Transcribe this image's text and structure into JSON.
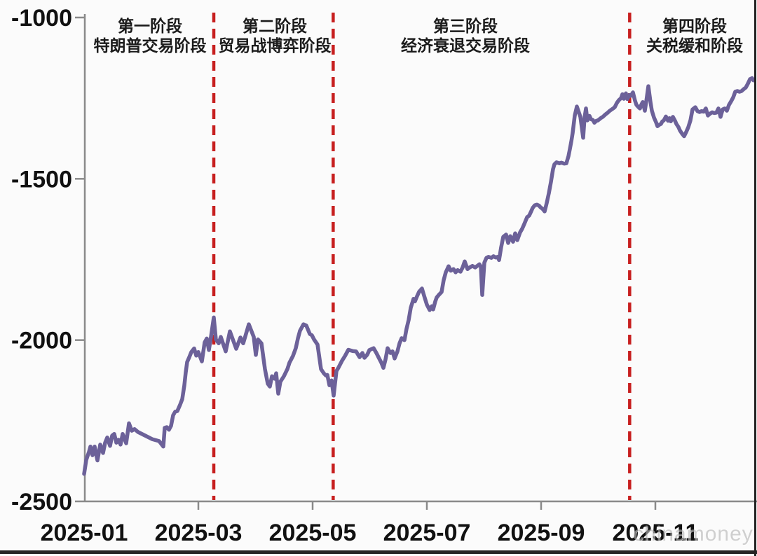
{
  "watermark": "chinamoney",
  "chart_data": {
    "type": "line",
    "ylim": [
      -2500,
      -1000
    ],
    "xlim_months": [
      0,
      11.78
    ],
    "grid": false,
    "legend": "none",
    "y_ticks": [
      {
        "v": -1000,
        "label": "-1000"
      },
      {
        "v": -1500,
        "label": "-1500"
      },
      {
        "v": -2000,
        "label": "-2000"
      },
      {
        "v": -2500,
        "label": "-2500"
      }
    ],
    "x_ticks": [
      {
        "m": 0,
        "label": "2025-01"
      },
      {
        "m": 2,
        "label": "2025-03"
      },
      {
        "m": 4,
        "label": "2025-05"
      },
      {
        "m": 6,
        "label": "2025-07"
      },
      {
        "m": 8,
        "label": "2025-09"
      },
      {
        "m": 10,
        "label": "2025-11"
      }
    ],
    "phases": [
      {
        "line1": "第一阶段",
        "line2": "特朗普交易阶段"
      },
      {
        "line1": "第二阶段",
        "line2": "贸易战博弈阶段"
      },
      {
        "line1": "第三阶段",
        "line2": "经济衰退交易阶段"
      },
      {
        "line1": "第四阶段",
        "line2": "关税缓和阶段"
      }
    ],
    "dividers_months": [
      2.27,
      4.36,
      9.55
    ],
    "colors": {
      "line": "#6c6199",
      "divider": "#c71f1f",
      "axis": "#8a8a8a",
      "text": "#111111"
    },
    "series": [
      {
        "points": [
          [
            0.0,
            -2415
          ],
          [
            0.037,
            -2372
          ],
          [
            0.086,
            -2346
          ],
          [
            0.11,
            -2330
          ],
          [
            0.147,
            -2357
          ],
          [
            0.184,
            -2330
          ],
          [
            0.233,
            -2373
          ],
          [
            0.282,
            -2324
          ],
          [
            0.331,
            -2350
          ],
          [
            0.368,
            -2318
          ],
          [
            0.405,
            -2302
          ],
          [
            0.454,
            -2328
          ],
          [
            0.491,
            -2296
          ],
          [
            0.528,
            -2291
          ],
          [
            0.564,
            -2318
          ],
          [
            0.601,
            -2309
          ],
          [
            0.638,
            -2324
          ],
          [
            0.675,
            -2291
          ],
          [
            0.736,
            -2320
          ],
          [
            0.785,
            -2258
          ],
          [
            0.834,
            -2281
          ],
          [
            0.883,
            -2276
          ],
          [
            0.945,
            -2285
          ],
          [
            1.067,
            -2296
          ],
          [
            1.19,
            -2307
          ],
          [
            1.313,
            -2313
          ],
          [
            1.387,
            -2330
          ],
          [
            1.411,
            -2272
          ],
          [
            1.448,
            -2270
          ],
          [
            1.485,
            -2278
          ],
          [
            1.521,
            -2266
          ],
          [
            1.558,
            -2233
          ],
          [
            1.595,
            -2222
          ],
          [
            1.632,
            -2220
          ],
          [
            1.681,
            -2200
          ],
          [
            1.718,
            -2183
          ],
          [
            1.755,
            -2140
          ],
          [
            1.779,
            -2100
          ],
          [
            1.804,
            -2068
          ],
          [
            1.84,
            -2053
          ],
          [
            1.877,
            -2037
          ],
          [
            1.926,
            -2026
          ],
          [
            1.963,
            -2048
          ],
          [
            2.0,
            -2037
          ],
          [
            2.061,
            -2066
          ],
          [
            2.11,
            -2007
          ],
          [
            2.147,
            -1995
          ],
          [
            2.184,
            -2031
          ],
          [
            2.221,
            -1990
          ],
          [
            2.27,
            -1930
          ],
          [
            2.307,
            -1998
          ],
          [
            2.356,
            -2010
          ],
          [
            2.393,
            -1990
          ],
          [
            2.479,
            -2035
          ],
          [
            2.552,
            -1973
          ],
          [
            2.663,
            -2027
          ],
          [
            2.736,
            -1992
          ],
          [
            2.785,
            -2010
          ],
          [
            2.883,
            -1951
          ],
          [
            2.969,
            -1990
          ],
          [
            3.006,
            -2046
          ],
          [
            3.043,
            -1998
          ],
          [
            3.104,
            -2010
          ],
          [
            3.166,
            -2090
          ],
          [
            3.215,
            -2135
          ],
          [
            3.252,
            -2144
          ],
          [
            3.288,
            -2112
          ],
          [
            3.337,
            -2120
          ],
          [
            3.362,
            -2103
          ],
          [
            3.399,
            -2166
          ],
          [
            3.436,
            -2129
          ],
          [
            3.497,
            -2112
          ],
          [
            3.558,
            -2090
          ],
          [
            3.595,
            -2070
          ],
          [
            3.656,
            -2049
          ],
          [
            3.706,
            -2025
          ],
          [
            3.742,
            -1995
          ],
          [
            3.779,
            -1971
          ],
          [
            3.84,
            -1951
          ],
          [
            3.89,
            -1955
          ],
          [
            3.951,
            -1981
          ],
          [
            3.988,
            -1985
          ],
          [
            4.025,
            -1998
          ],
          [
            4.086,
            -2014
          ],
          [
            4.147,
            -2090
          ],
          [
            4.196,
            -2103
          ],
          [
            4.233,
            -2110
          ],
          [
            4.258,
            -2108
          ],
          [
            4.294,
            -2140
          ],
          [
            4.331,
            -2125
          ],
          [
            4.368,
            -2172
          ],
          [
            4.417,
            -2096
          ],
          [
            4.454,
            -2085
          ],
          [
            4.515,
            -2064
          ],
          [
            4.564,
            -2050
          ],
          [
            4.626,
            -2030
          ],
          [
            4.699,
            -2034
          ],
          [
            4.761,
            -2035
          ],
          [
            4.822,
            -2053
          ],
          [
            4.871,
            -2040
          ],
          [
            4.908,
            -2055
          ],
          [
            4.957,
            -2045
          ],
          [
            4.994,
            -2031
          ],
          [
            5.067,
            -2025
          ],
          [
            5.117,
            -2040
          ],
          [
            5.153,
            -2053
          ],
          [
            5.202,
            -2070
          ],
          [
            5.239,
            -2086
          ],
          [
            5.276,
            -2060
          ],
          [
            5.313,
            -2025
          ],
          [
            5.362,
            -2040
          ],
          [
            5.399,
            -2035
          ],
          [
            5.436,
            -2057
          ],
          [
            5.485,
            -2035
          ],
          [
            5.521,
            -2010
          ],
          [
            5.558,
            -1994
          ],
          [
            5.607,
            -2000
          ],
          [
            5.644,
            -1965
          ],
          [
            5.681,
            -1938
          ],
          [
            5.718,
            -1900
          ],
          [
            5.767,
            -1872
          ],
          [
            5.791,
            -1880
          ],
          [
            5.828,
            -1864
          ],
          [
            5.865,
            -1850
          ],
          [
            5.914,
            -1840
          ],
          [
            5.951,
            -1862
          ],
          [
            6.0,
            -1890
          ],
          [
            6.049,
            -1907
          ],
          [
            6.086,
            -1895
          ],
          [
            6.11,
            -1905
          ],
          [
            6.147,
            -1880
          ],
          [
            6.172,
            -1868
          ],
          [
            6.209,
            -1860
          ],
          [
            6.258,
            -1851
          ],
          [
            6.294,
            -1814
          ],
          [
            6.331,
            -1790
          ],
          [
            6.38,
            -1771
          ],
          [
            6.417,
            -1785
          ],
          [
            6.466,
            -1780
          ],
          [
            6.503,
            -1790
          ],
          [
            6.54,
            -1783
          ],
          [
            6.589,
            -1788
          ],
          [
            6.626,
            -1775
          ],
          [
            6.663,
            -1756
          ],
          [
            6.712,
            -1780
          ],
          [
            6.748,
            -1775
          ],
          [
            6.797,
            -1770
          ],
          [
            6.847,
            -1775
          ],
          [
            6.883,
            -1770
          ],
          [
            6.92,
            -1765
          ],
          [
            6.945,
            -1772
          ],
          [
            6.969,
            -1860
          ],
          [
            7.006,
            -1760
          ],
          [
            7.043,
            -1745
          ],
          [
            7.08,
            -1742
          ],
          [
            7.129,
            -1745
          ],
          [
            7.166,
            -1740
          ],
          [
            7.202,
            -1744
          ],
          [
            7.239,
            -1742
          ],
          [
            7.264,
            -1752
          ],
          [
            7.301,
            -1712
          ],
          [
            7.337,
            -1680
          ],
          [
            7.387,
            -1673
          ],
          [
            7.423,
            -1699
          ],
          [
            7.46,
            -1678
          ],
          [
            7.509,
            -1695
          ],
          [
            7.546,
            -1669
          ],
          [
            7.583,
            -1690
          ],
          [
            7.632,
            -1666
          ],
          [
            7.669,
            -1655
          ],
          [
            7.706,
            -1640
          ],
          [
            7.755,
            -1619
          ],
          [
            7.791,
            -1614
          ],
          [
            7.828,
            -1600
          ],
          [
            7.853,
            -1590
          ],
          [
            7.89,
            -1582
          ],
          [
            7.926,
            -1580
          ],
          [
            7.963,
            -1583
          ],
          [
            7.988,
            -1588
          ],
          [
            8.025,
            -1593
          ],
          [
            8.061,
            -1601
          ],
          [
            8.098,
            -1575
          ],
          [
            8.135,
            -1545
          ],
          [
            8.172,
            -1510
          ],
          [
            8.209,
            -1470
          ],
          [
            8.233,
            -1455
          ],
          [
            8.27,
            -1449
          ],
          [
            8.319,
            -1452
          ],
          [
            8.356,
            -1450
          ],
          [
            8.405,
            -1453
          ],
          [
            8.442,
            -1452
          ],
          [
            8.479,
            -1430
          ],
          [
            8.503,
            -1408
          ],
          [
            8.528,
            -1385
          ],
          [
            8.552,
            -1358
          ],
          [
            8.589,
            -1304
          ],
          [
            8.626,
            -1276
          ],
          [
            8.663,
            -1295
          ],
          [
            8.687,
            -1308
          ],
          [
            8.712,
            -1340
          ],
          [
            8.736,
            -1373
          ],
          [
            8.761,
            -1310
          ],
          [
            8.785,
            -1282
          ],
          [
            8.81,
            -1319
          ],
          [
            8.847,
            -1305
          ],
          [
            8.871,
            -1315
          ],
          [
            8.908,
            -1318
          ],
          [
            8.933,
            -1326
          ],
          [
            8.969,
            -1320
          ],
          [
            8.994,
            -1319
          ],
          [
            9.043,
            -1312
          ],
          [
            9.08,
            -1308
          ],
          [
            9.129,
            -1300
          ],
          [
            9.166,
            -1295
          ],
          [
            9.202,
            -1289
          ],
          [
            9.252,
            -1283
          ],
          [
            9.288,
            -1278
          ],
          [
            9.325,
            -1265
          ],
          [
            9.362,
            -1256
          ],
          [
            9.399,
            -1250
          ],
          [
            9.423,
            -1238
          ],
          [
            9.448,
            -1252
          ],
          [
            9.485,
            -1235
          ],
          [
            9.509,
            -1253
          ],
          [
            9.546,
            -1240
          ],
          [
            9.571,
            -1243
          ],
          [
            9.607,
            -1232
          ],
          [
            9.644,
            -1258
          ],
          [
            9.669,
            -1271
          ],
          [
            9.706,
            -1278
          ],
          [
            9.73,
            -1282
          ],
          [
            9.755,
            -1270
          ],
          [
            9.779,
            -1262
          ],
          [
            9.816,
            -1289
          ],
          [
            9.84,
            -1260
          ],
          [
            9.877,
            -1213
          ],
          [
            9.914,
            -1262
          ],
          [
            9.939,
            -1289
          ],
          [
            9.975,
            -1310
          ],
          [
            10.012,
            -1325
          ],
          [
            10.037,
            -1337
          ],
          [
            10.074,
            -1332
          ],
          [
            10.098,
            -1330
          ],
          [
            10.123,
            -1322
          ],
          [
            10.147,
            -1319
          ],
          [
            10.184,
            -1307
          ],
          [
            10.221,
            -1320
          ],
          [
            10.245,
            -1312
          ],
          [
            10.27,
            -1322
          ],
          [
            10.307,
            -1308
          ],
          [
            10.344,
            -1320
          ],
          [
            10.368,
            -1330
          ],
          [
            10.405,
            -1340
          ],
          [
            10.429,
            -1350
          ],
          [
            10.466,
            -1360
          ],
          [
            10.503,
            -1368
          ],
          [
            10.54,
            -1355
          ],
          [
            10.577,
            -1340
          ],
          [
            10.613,
            -1319
          ],
          [
            10.65,
            -1285
          ],
          [
            10.699,
            -1278
          ],
          [
            10.736,
            -1290
          ],
          [
            10.773,
            -1293
          ],
          [
            10.81,
            -1290
          ],
          [
            10.847,
            -1292
          ],
          [
            10.883,
            -1282
          ],
          [
            10.92,
            -1304
          ],
          [
            10.957,
            -1298
          ],
          [
            10.994,
            -1294
          ],
          [
            11.031,
            -1296
          ],
          [
            11.067,
            -1295
          ],
          [
            11.104,
            -1282
          ],
          [
            11.141,
            -1308
          ],
          [
            11.178,
            -1285
          ],
          [
            11.215,
            -1282
          ],
          [
            11.252,
            -1289
          ],
          [
            11.288,
            -1271
          ],
          [
            11.325,
            -1260
          ],
          [
            11.362,
            -1248
          ],
          [
            11.399,
            -1230
          ],
          [
            11.436,
            -1228
          ],
          [
            11.472,
            -1230
          ],
          [
            11.509,
            -1228
          ],
          [
            11.546,
            -1222
          ],
          [
            11.583,
            -1217
          ],
          [
            11.62,
            -1205
          ],
          [
            11.656,
            -1191
          ],
          [
            11.693,
            -1188
          ],
          [
            11.718,
            -1195
          ]
        ]
      }
    ]
  }
}
